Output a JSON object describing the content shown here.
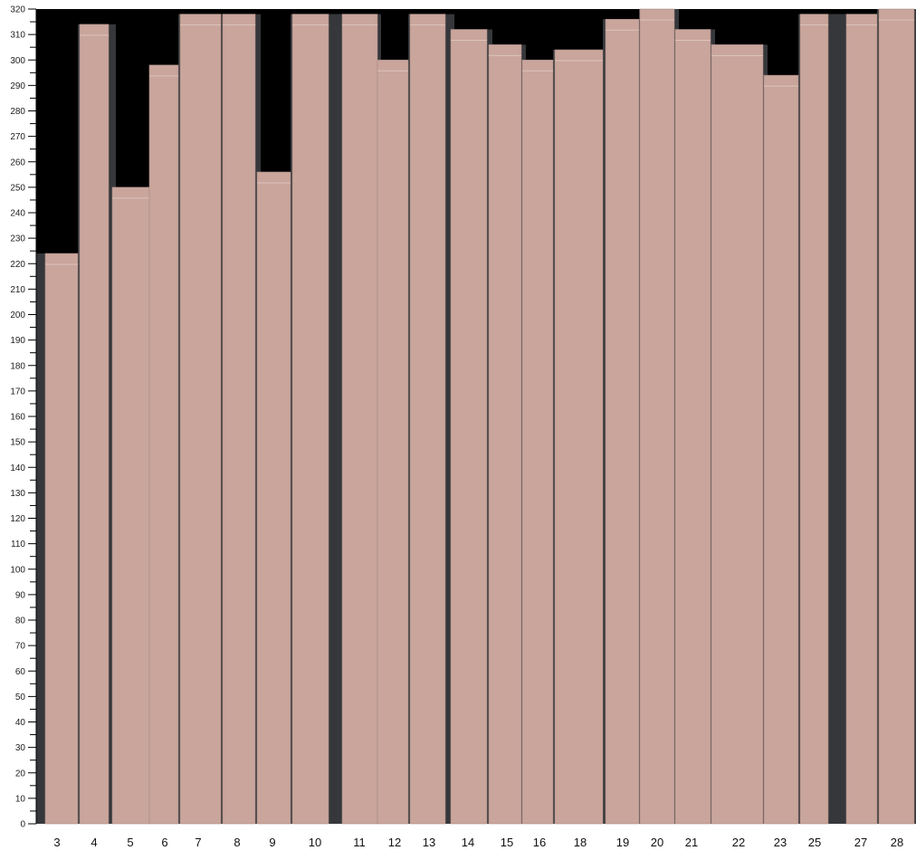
{
  "chart_data": {
    "type": "bar",
    "categories": [
      "3",
      "4",
      "5",
      "6",
      "7",
      "8",
      "9",
      "10",
      "11",
      "12",
      "13",
      "14",
      "15",
      "16",
      "18",
      "19",
      "20",
      "21",
      "22",
      "23",
      "25",
      "27",
      "28"
    ],
    "values": [
      224,
      314,
      250,
      298,
      318,
      318,
      256,
      318,
      318,
      300,
      318,
      312,
      306,
      300,
      304,
      316,
      320,
      312,
      306,
      294,
      318,
      318,
      320
    ],
    "ylim": [
      0,
      320
    ],
    "yticks_major_step": 10,
    "yticks_minor_step": 5,
    "grid": false,
    "colors": {
      "bar": "#c9a59c",
      "shadow": "#35373a",
      "background": "#000000"
    }
  }
}
